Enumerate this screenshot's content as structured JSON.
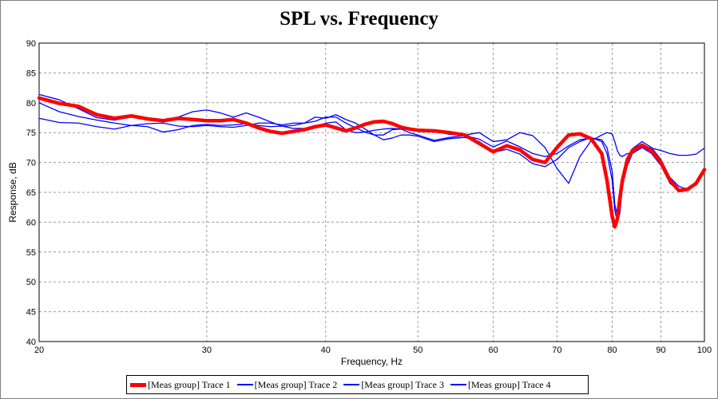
{
  "chart_data": {
    "type": "line",
    "title": "SPL vs. Frequency",
    "xlabel": "Frequency, Hz",
    "ylabel": "Response, dB",
    "x_scale": "log",
    "xlim": [
      20,
      100
    ],
    "ylim": [
      40,
      90
    ],
    "x_ticks": [
      20,
      30,
      40,
      50,
      60,
      70,
      80,
      90,
      100
    ],
    "y_ticks": [
      40,
      45,
      50,
      55,
      60,
      65,
      70,
      75,
      80,
      85,
      90
    ],
    "grid": true,
    "legend_position": "bottom",
    "series": [
      {
        "name": "[Meas group] Trace 1",
        "color": "#ff0000",
        "x": [
          20,
          21,
          22,
          23,
          24,
          25,
          26,
          27,
          28,
          29,
          30,
          31,
          32,
          33,
          34,
          35,
          36,
          37,
          38,
          39,
          40,
          41,
          42,
          43,
          44,
          45,
          46,
          47,
          48,
          49,
          50,
          52,
          54,
          56,
          58,
          60,
          62,
          64,
          66,
          68,
          70,
          72,
          74,
          76,
          78,
          79,
          80,
          80.5,
          81,
          81.5,
          82,
          83,
          84,
          86,
          88,
          90,
          92,
          94,
          96,
          98,
          100
        ],
        "y": [
          80.8,
          79.9,
          79.4,
          78.0,
          77.4,
          77.8,
          77.3,
          77.0,
          77.4,
          77.2,
          77.0,
          77.0,
          77.2,
          76.6,
          75.8,
          75.2,
          74.9,
          75.2,
          75.5,
          76.0,
          76.3,
          75.8,
          75.3,
          75.8,
          76.4,
          76.8,
          76.9,
          76.5,
          75.9,
          75.6,
          75.4,
          75.3,
          75.0,
          74.6,
          73.2,
          71.8,
          72.8,
          72.1,
          70.5,
          70.0,
          72.5,
          74.6,
          74.8,
          74.0,
          71.5,
          67.0,
          61.0,
          59.2,
          60.5,
          64.0,
          67.0,
          70.5,
          72.0,
          72.9,
          72.0,
          70.0,
          67.0,
          65.3,
          65.5,
          66.5,
          68.8
        ]
      },
      {
        "name": "[Meas group] Trace 2",
        "color": "#0000ff",
        "x": [
          20,
          21,
          22,
          23,
          24,
          25,
          26,
          27,
          28,
          29,
          30,
          31,
          32,
          33,
          34,
          35,
          36,
          37,
          38,
          39,
          40,
          41,
          42,
          43,
          44,
          45,
          46,
          47,
          48,
          49,
          50,
          52,
          54,
          56,
          58,
          60,
          62,
          64,
          66,
          68,
          70,
          72,
          74,
          76,
          78,
          79,
          80,
          80.5,
          81,
          81.5,
          82,
          83,
          84,
          86,
          88,
          90,
          92,
          94,
          96,
          98,
          100
        ],
        "y": [
          81.4,
          80.5,
          79.0,
          77.5,
          77.1,
          77.6,
          77.5,
          77.0,
          77.6,
          78.5,
          78.8,
          78.3,
          77.6,
          78.3,
          77.6,
          76.8,
          76.1,
          76.2,
          76.6,
          77.6,
          77.4,
          78.0,
          77.2,
          76.6,
          75.6,
          74.6,
          73.8,
          74.1,
          74.6,
          74.6,
          74.4,
          73.5,
          74.0,
          74.2,
          73.5,
          71.7,
          72.2,
          71.4,
          69.8,
          69.3,
          70.5,
          72.5,
          73.5,
          74.2,
          73.5,
          71.5,
          67.0,
          62.0,
          60.0,
          61.5,
          66.0,
          69.5,
          71.5,
          72.5,
          71.5,
          69.5,
          66.5,
          65.3,
          65.5,
          66.5,
          68.5
        ]
      },
      {
        "name": "[Meas group] Trace 3",
        "color": "#0000ff",
        "x": [
          20,
          21,
          22,
          23,
          24,
          25,
          26,
          27,
          28,
          29,
          30,
          31,
          32,
          33,
          34,
          35,
          36,
          37,
          38,
          39,
          40,
          41,
          42,
          43,
          44,
          45,
          46,
          47,
          48,
          49,
          50,
          52,
          54,
          56,
          58,
          60,
          62,
          64,
          66,
          68,
          70,
          72,
          74,
          76,
          78,
          79,
          80,
          80.5,
          81,
          81.5,
          82,
          83,
          84,
          86,
          88,
          90,
          92,
          94,
          96,
          98,
          100
        ],
        "y": [
          80.0,
          78.5,
          77.7,
          77.1,
          76.6,
          76.2,
          76.0,
          75.1,
          75.5,
          76.2,
          76.4,
          76.2,
          76.3,
          76.5,
          76.2,
          76.0,
          76.1,
          75.7,
          75.7,
          75.9,
          76.6,
          76.8,
          75.5,
          75.0,
          75.1,
          75.4,
          75.6,
          75.7,
          75.6,
          75.0,
          74.6,
          73.7,
          74.2,
          74.5,
          73.9,
          72.6,
          73.6,
          72.6,
          71.5,
          71.0,
          71.5,
          72.8,
          73.8,
          74.1,
          73.8,
          72.5,
          68.5,
          63.0,
          61.0,
          62.5,
          67.5,
          70.5,
          72.3,
          73.5,
          72.5,
          70.5,
          67.5,
          66.0,
          65.5,
          66.5,
          69.0
        ]
      },
      {
        "name": "[Meas group] Trace 4",
        "color": "#0000ff",
        "x": [
          20,
          21,
          22,
          23,
          24,
          25,
          26,
          27,
          28,
          29,
          30,
          31,
          32,
          33,
          34,
          35,
          36,
          37,
          38,
          39,
          40,
          41,
          42,
          43,
          44,
          45,
          46,
          47,
          48,
          49,
          50,
          52,
          54,
          56,
          58,
          60,
          62,
          64,
          66,
          68,
          70,
          72,
          74,
          76,
          78,
          79,
          80,
          80.5,
          81,
          81.5,
          82,
          83,
          84,
          86,
          88,
          90,
          92,
          94,
          96,
          98,
          100
        ],
        "y": [
          77.4,
          76.7,
          76.6,
          76.0,
          75.6,
          76.2,
          76.5,
          76.6,
          76.1,
          76.0,
          76.2,
          76.0,
          75.9,
          76.2,
          76.6,
          76.6,
          76.3,
          76.6,
          76.6,
          76.9,
          77.6,
          77.6,
          76.6,
          75.8,
          75.1,
          74.6,
          74.6,
          75.5,
          75.6,
          75.6,
          75.6,
          75.3,
          74.7,
          74.6,
          75.0,
          73.5,
          73.8,
          75.0,
          74.5,
          72.5,
          69.0,
          66.5,
          71.0,
          73.6,
          74.6,
          75.0,
          74.8,
          73.5,
          72.0,
          71.2,
          71.0,
          71.5,
          71.5,
          72.6,
          72.4,
          72.0,
          71.5,
          71.2,
          71.2,
          71.4,
          72.4
        ]
      }
    ]
  }
}
